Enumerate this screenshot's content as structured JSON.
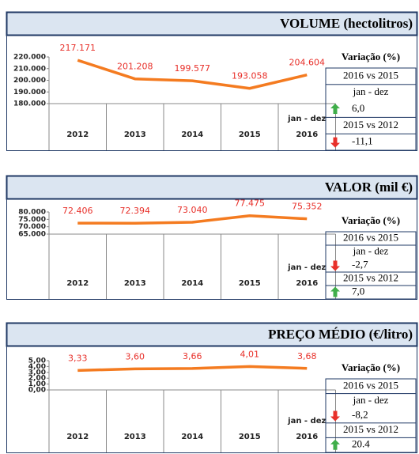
{
  "chart_data": [
    {
      "type": "line",
      "title": "VOLUME (hectolitros)",
      "categories": [
        "2012",
        "2013",
        "2014",
        "2015",
        "2016"
      ],
      "annotation": "jan - dez",
      "values": [
        217171,
        201208,
        199577,
        193058,
        204604
      ],
      "value_labels": [
        "217.171",
        "201.208",
        "199.577",
        "193.058",
        "204.604"
      ],
      "color": "#f47b20",
      "ylim": [
        180000,
        220000
      ],
      "yticks": [
        {
          "value": 180000,
          "label": "180.000"
        },
        {
          "value": 190000,
          "label": "190.000"
        },
        {
          "value": 200000,
          "label": "200.000"
        },
        {
          "value": 210000,
          "label": "210.000"
        },
        {
          "value": 220000,
          "label": "220.000"
        }
      ],
      "variation": {
        "title": "Variação (%)",
        "items": [
          {
            "label": "2016 vs 2015",
            "period": "jan - dez",
            "value": 6.0,
            "value_label": "6,0"
          },
          {
            "label": "2015 vs 2012",
            "value": -11.1,
            "value_label": "-11,1"
          }
        ]
      }
    },
    {
      "type": "line",
      "title": "VALOR (mil €)",
      "categories": [
        "2012",
        "2013",
        "2014",
        "2015",
        "2016"
      ],
      "annotation": "jan - dez",
      "values": [
        72406,
        72394,
        73040,
        77475,
        75352
      ],
      "value_labels": [
        "72.406",
        "72.394",
        "73.040",
        "77.475",
        "75.352"
      ],
      "color": "#f47b20",
      "ylim": [
        65000,
        80000
      ],
      "yticks": [
        {
          "value": 65000,
          "label": "65.000"
        },
        {
          "value": 70000,
          "label": "70.000"
        },
        {
          "value": 75000,
          "label": "75.000"
        },
        {
          "value": 80000,
          "label": "80.000"
        }
      ],
      "variation": {
        "title": "Variação (%)",
        "items": [
          {
            "label": "2016 vs 2015",
            "period": "jan - dez",
            "value": -2.7,
            "value_label": "-2,7"
          },
          {
            "label": "2015 vs 2012",
            "value": 7.0,
            "value_label": "7,0"
          }
        ]
      }
    },
    {
      "type": "line",
      "title": "PREÇO MÉDIO (€/litro)",
      "categories": [
        "2012",
        "2013",
        "2014",
        "2015",
        "2016"
      ],
      "annotation": "jan - dez",
      "values": [
        3.33,
        3.6,
        3.66,
        4.01,
        3.68
      ],
      "value_labels": [
        "3,33",
        "3,60",
        "3,66",
        "4,01",
        "3,68"
      ],
      "color": "#f47b20",
      "ylim": [
        0,
        5
      ],
      "yticks": [
        {
          "value": 0,
          "label": "0,00"
        },
        {
          "value": 1,
          "label": "1,00"
        },
        {
          "value": 2,
          "label": "2,00"
        },
        {
          "value": 3,
          "label": "3,00"
        },
        {
          "value": 4,
          "label": "4,00"
        },
        {
          "value": 5,
          "label": "5,00"
        }
      ],
      "variation": {
        "title": "Variação (%)",
        "items": [
          {
            "label": "2016 vs 2015",
            "period": "jan - dez",
            "value": -8.2,
            "value_label": "-8,2"
          },
          {
            "label": "2015 vs 2012",
            "value": 20.4,
            "value_label": "20.4"
          }
        ]
      }
    }
  ]
}
